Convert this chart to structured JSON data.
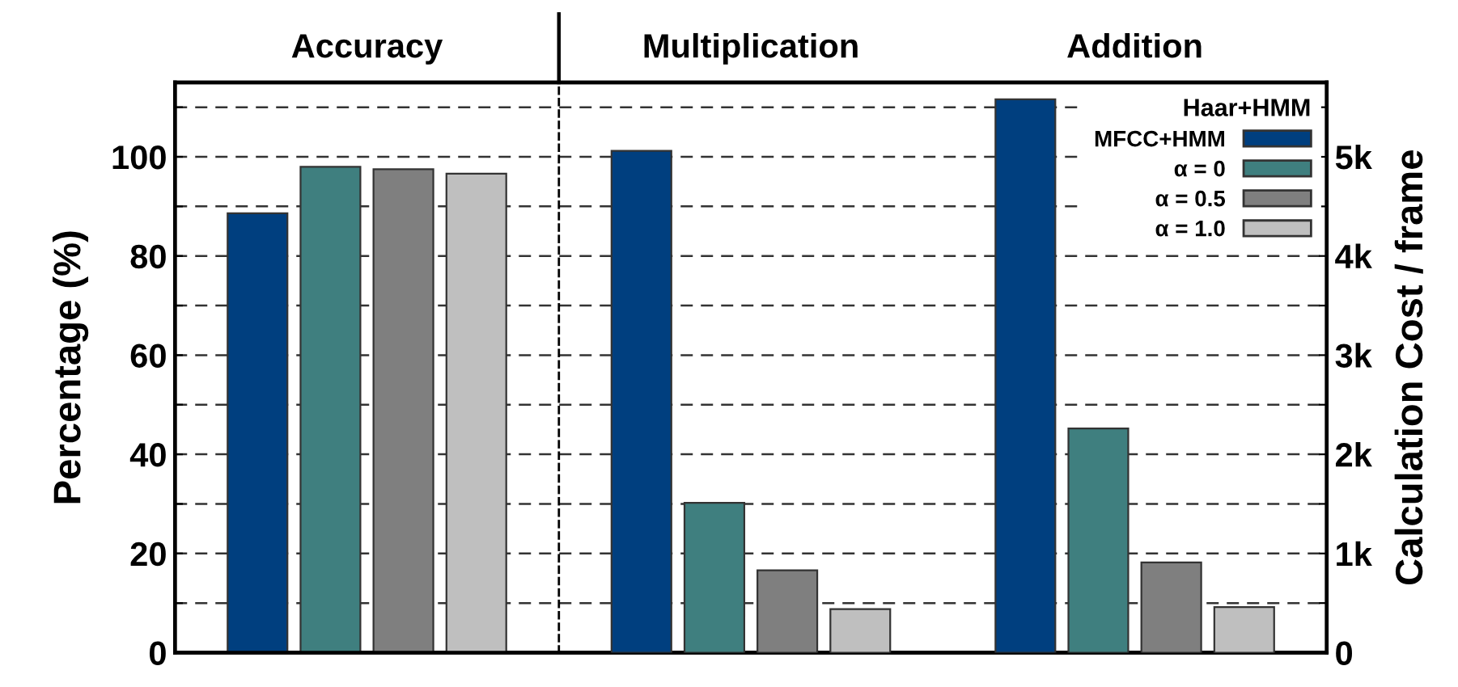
{
  "chart_data": {
    "type": "bar",
    "categories": [
      "Accuracy",
      "Multiplication",
      "Addition"
    ],
    "ylabel": "Percentage (%)",
    "y2label": "Calculation Cost / frame",
    "series": [
      {
        "name": "MFCC+HMM",
        "color": "#003f7f",
        "values": [
          88.6,
          null,
          null
        ]
      },
      {
        "name": "α = 0",
        "color": "#3f7f7f",
        "values": [
          98.0,
          null,
          null
        ]
      },
      {
        "name": "α = 0.5",
        "color": "#7f7f7f",
        "values": [
          97.5,
          null,
          null
        ]
      },
      {
        "name": "α = 1.0",
        "color": "#bfbfbf",
        "values": [
          96.6,
          null,
          null
        ]
      },
      {
        "color": "#003f7f",
        "axis": "y2",
        "values": [
          null,
          5060,
          5580
        ]
      },
      {
        "color": "#3f7f7f",
        "axis": "y2",
        "values": [
          null,
          1510,
          2260
        ]
      },
      {
        "color": "#7f7f7f",
        "axis": "y2",
        "values": [
          null,
          830,
          910
        ]
      },
      {
        "color": "#bfbfbf",
        "axis": "y2",
        "values": [
          null,
          440,
          460
        ]
      }
    ],
    "legend_title": "Haar+HMM",
    "ylim": [
      0,
      115
    ],
    "yticks": [
      0,
      {
        "value": 10,
        "label": null
      },
      20,
      {
        "value": 30,
        "label": null
      },
      40,
      {
        "value": 50,
        "label": null
      },
      60,
      {
        "value": 70,
        "label": null
      },
      80,
      {
        "value": 90,
        "label": null
      },
      100,
      {
        "value": 110,
        "label": null
      }
    ],
    "y2lim": [
      0,
      5750
    ],
    "y2ticks": [
      {
        "value": 0,
        "label": "0"
      },
      {
        "value": 500,
        "label": null
      },
      {
        "value": 1000,
        "label": "1k"
      },
      {
        "value": 1500,
        "label": null
      },
      {
        "value": 2000,
        "label": "2k"
      },
      {
        "value": 2500,
        "label": null
      },
      {
        "value": 3000,
        "label": "3k"
      },
      {
        "value": 3500,
        "label": null
      },
      {
        "value": 4000,
        "label": "4k"
      },
      {
        "value": 4500,
        "label": null
      },
      {
        "value": 5000,
        "label": "5k"
      },
      {
        "value": 5500,
        "label": null
      }
    ],
    "grid": "y",
    "legend": "top right"
  }
}
